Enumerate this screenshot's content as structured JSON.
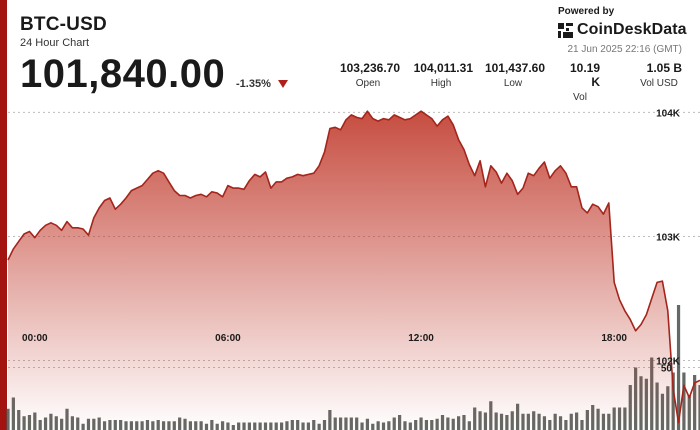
{
  "header": {
    "title": "BTC-USD",
    "subtitle": "24 Hour Chart",
    "price": "101,840.00",
    "change": "-1.35%",
    "powered_by": "Powered by",
    "brand": "CoinDeskData",
    "timestamp": "21 Jun 2025 22:16 (GMT)"
  },
  "stats": [
    {
      "value": "103,236.70",
      "label": "Open"
    },
    {
      "value": "104,011.31",
      "label": "High"
    },
    {
      "value": "101,437.60",
      "label": "Low"
    },
    {
      "value": "10.19 K",
      "label": "Vol"
    },
    {
      "value": "1.05 B",
      "label": "Vol USD"
    }
  ],
  "colors": {
    "accent": "#a3130f",
    "line": "#a3251c",
    "area_top": "#c0392b",
    "volume": "#4a4f4a"
  },
  "chart_data": {
    "type": "area",
    "title": "",
    "xlabel": "",
    "ylabel": "",
    "x_ticks": [
      "00:00",
      "06:00",
      "12:00",
      "18:00"
    ],
    "y_ticks": [
      "104K",
      "103K",
      "102K"
    ],
    "y_volume_tick": "50",
    "ylim": [
      101440,
      104100
    ],
    "series": [
      {
        "values": [
          102810,
          102900,
          102960,
          103020,
          103040,
          102990,
          103050,
          103090,
          103110,
          103090,
          103050,
          103120,
          103070,
          103070,
          103060,
          103010,
          103150,
          103230,
          103290,
          103310,
          103220,
          103260,
          103310,
          103370,
          103390,
          103410,
          103460,
          103510,
          103530,
          103510,
          103440,
          103370,
          103330,
          103330,
          103310,
          103330,
          103340,
          103320,
          103360,
          103350,
          103320,
          103410,
          103390,
          103390,
          103380,
          103450,
          103500,
          103480,
          103520,
          103390,
          103440,
          103440,
          103470,
          103480,
          103500,
          103490,
          103500,
          103510,
          103570,
          103680,
          103870,
          103880,
          103860,
          103940,
          103980,
          103960,
          103950,
          104010,
          103950,
          103930,
          103950,
          103940,
          103980,
          103960,
          103940,
          103950,
          103980,
          104010,
          103980,
          103950,
          103890,
          103940,
          103970,
          103900,
          103780,
          103700,
          103580,
          103490,
          103610,
          103400,
          103570,
          103520,
          103430,
          103510,
          103450,
          103340,
          103390,
          103510,
          103490,
          103550,
          103600,
          103470,
          103530,
          103570,
          103510,
          103400,
          103400,
          103230,
          103190,
          103260,
          103240,
          103180,
          103270,
          102630,
          102490,
          102400,
          102330,
          102240,
          102290,
          102370,
          102500,
          102630,
          102640,
          102400,
          101770,
          101500,
          101800,
          101700,
          101820,
          101840
        ]
      }
    ],
    "volume": {
      "values": [
        17,
        26,
        16,
        11,
        12,
        14,
        8,
        10,
        13,
        11,
        9,
        17,
        11,
        10,
        5,
        9,
        9,
        10,
        7,
        8,
        8,
        8,
        7,
        7,
        7,
        7,
        8,
        7,
        8,
        7,
        7,
        7,
        10,
        9,
        7,
        7,
        7,
        5,
        8,
        5,
        7,
        6,
        4,
        6,
        6,
        6,
        6,
        6,
        6,
        6,
        6,
        6,
        7,
        8,
        8,
        6,
        6,
        8,
        5,
        8,
        16,
        10,
        10,
        10,
        10,
        10,
        6,
        9,
        5,
        7,
        6,
        7,
        10,
        12,
        7,
        6,
        8,
        10,
        8,
        8,
        9,
        12,
        10,
        9,
        11,
        12,
        7,
        18,
        15,
        14,
        23,
        14,
        13,
        12,
        15,
        21,
        13,
        13,
        15,
        13,
        11,
        8,
        13,
        11,
        8,
        13,
        14,
        8,
        16,
        20,
        17,
        13,
        13,
        18,
        18,
        18,
        36,
        50,
        43,
        41,
        58,
        38,
        29,
        35,
        46,
        100,
        46,
        28,
        44,
        36
      ]
    }
  }
}
